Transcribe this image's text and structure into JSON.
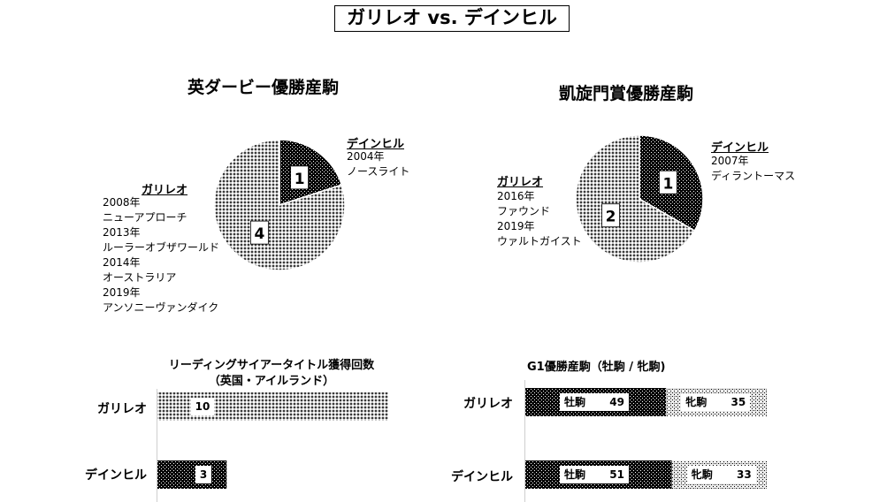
{
  "title": "ガリレオ vs. デインヒル",
  "colors": {
    "dark": "#000000",
    "light": "#ffffff"
  },
  "chart_data": [
    {
      "type": "pie",
      "title": "英ダービー優勝産駒",
      "slices": [
        {
          "name": "デインヒル",
          "value": 1,
          "pattern": "dark",
          "horses": [
            "2004年",
            "ノースライト"
          ]
        },
        {
          "name": "ガリレオ",
          "value": 4,
          "pattern": "light",
          "horses": [
            "2008年",
            "ニューアプローチ",
            "2013年",
            "ルーラーオブザワールド",
            "2014年",
            "オーストラリア",
            "2019年",
            "アンソニーヴァンダイク"
          ]
        }
      ]
    },
    {
      "type": "pie",
      "title": "凱旋門賞優勝産駒",
      "slices": [
        {
          "name": "デインヒル",
          "value": 1,
          "pattern": "dark",
          "horses": [
            "2007年",
            "ディラントーマス"
          ]
        },
        {
          "name": "ガリレオ",
          "value": 2,
          "pattern": "light",
          "horses": [
            "2016年",
            "ファウンド",
            "2019年",
            "ウァルトガイスト"
          ]
        }
      ]
    },
    {
      "type": "bar",
      "title": "リーディングサイアータイトル獲得回数",
      "subtitle": "（英国・アイルランド）",
      "categories": [
        "ガリレオ",
        "デインヒル"
      ],
      "values": [
        10,
        3
      ],
      "xlim": [
        0,
        10
      ]
    },
    {
      "type": "bar",
      "stacked": true,
      "title": "G1優勝産駒（牡駒 / 牝駒)",
      "categories": [
        "ガリレオ",
        "デインヒル"
      ],
      "series": [
        {
          "name": "牡駒",
          "values": [
            49,
            51
          ]
        },
        {
          "name": "牝駒",
          "values": [
            35,
            33
          ]
        }
      ]
    }
  ]
}
